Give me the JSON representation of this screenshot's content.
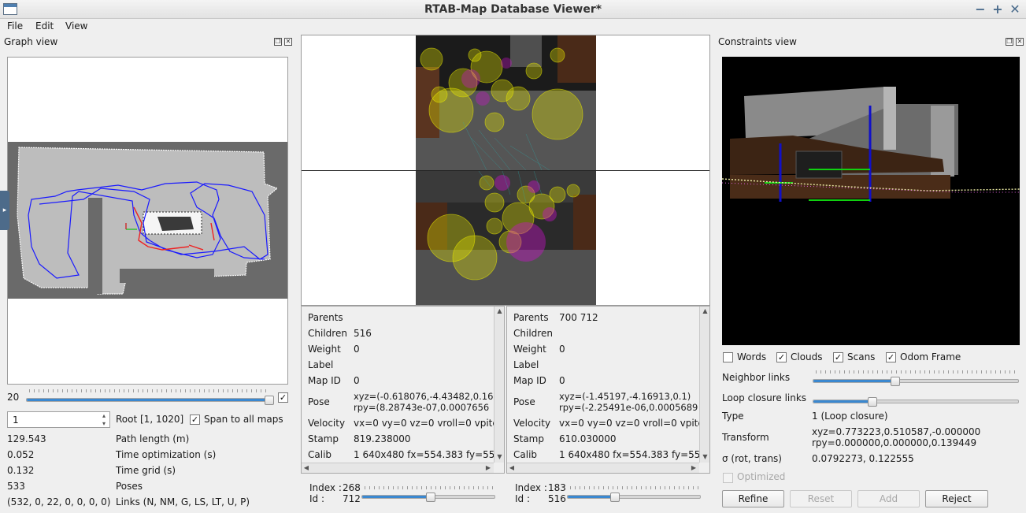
{
  "window": {
    "title": "RTAB-Map Database Viewer*",
    "buttons": [
      "−",
      "+",
      "✕"
    ]
  },
  "menu": [
    "File",
    "Edit",
    "View"
  ],
  "graph_view": {
    "title": "Graph view",
    "slider_value": "20",
    "slider_fraction": 0.99,
    "slider_checked": true,
    "root_input": "1",
    "root_label": "Root [1, 1020]",
    "span_checked": true,
    "span_label": "Span to all maps",
    "stats": [
      {
        "value": "129.543",
        "label": "Path length (m)"
      },
      {
        "value": "0.052",
        "label": "Time optimization (s)"
      },
      {
        "value": "0.132",
        "label": "Time grid (s)"
      },
      {
        "value": "533",
        "label": "Poses"
      },
      {
        "value": "(532, 0, 22, 0, 0, 0, 0)",
        "label": "Links (N, NM, G, LS, LT, U, P)"
      }
    ]
  },
  "left_node": {
    "fields": [
      {
        "label": "Parents",
        "value": ""
      },
      {
        "label": "Children",
        "value": "516"
      },
      {
        "label": "Weight",
        "value": "0"
      },
      {
        "label": "Label",
        "value": ""
      },
      {
        "label": "Map ID",
        "value": "0"
      },
      {
        "label": "Pose",
        "value": "xyz=(-0.618076,-4.43482,0.16",
        "value2": "rpy=(8.28743e-07,0.0007656"
      },
      {
        "label": "Velocity",
        "value": "vx=0 vy=0 vz=0 vroll=0 vpitc"
      },
      {
        "label": "Stamp",
        "value": "819.238000"
      },
      {
        "label": "Calib",
        "value": "1 640x480 fx=554.383 fy=55"
      }
    ],
    "index_label": "Index :",
    "index_value": "268",
    "id_label": "Id :",
    "id_value": "712",
    "slider_fraction": 0.52
  },
  "right_node": {
    "fields": [
      {
        "label": "Parents",
        "value": "700 712"
      },
      {
        "label": "Children",
        "value": ""
      },
      {
        "label": "Weight",
        "value": "0"
      },
      {
        "label": "Label",
        "value": ""
      },
      {
        "label": "Map ID",
        "value": "0"
      },
      {
        "label": "Pose",
        "value": "xyz=(-1.45197,-4.16913,0.1)",
        "value2": "rpy=(-2.25491e-06,0.0005689"
      },
      {
        "label": "Velocity",
        "value": "vx=0 vy=0 vz=0 vroll=0 vpitc"
      },
      {
        "label": "Stamp",
        "value": "610.030000"
      },
      {
        "label": "Calib",
        "value": "1 640x480 fx=554.383 fy=55"
      }
    ],
    "index_label": "Index :",
    "index_value": "183",
    "id_label": "Id :",
    "id_value": "516",
    "slider_fraction": 0.36
  },
  "constraints_view": {
    "title": "Constraints view",
    "checks": [
      {
        "label": "Words",
        "checked": false
      },
      {
        "label": "Clouds",
        "checked": true
      },
      {
        "label": "Scans",
        "checked": true
      },
      {
        "label": "Odom Frame",
        "checked": true
      }
    ],
    "neighbor_label": "Neighbor links",
    "neighbor_fraction": 0.4,
    "loop_label": "Loop closure links",
    "loop_fraction": 0.29,
    "type_label": "Type",
    "type_value": "1 (Loop closure)",
    "transform_label": "Transform",
    "transform_value1": "xyz=0.773223,0.510587,-0.000000",
    "transform_value2": "rpy=0.000000,0.000000,0.139449",
    "sigma_label": "σ (rot, trans)",
    "sigma_value": "0.0792273, 0.122555",
    "optimized_label": "Optimized",
    "buttons": {
      "refine": "Refine",
      "reset": "Reset",
      "add": "Add",
      "reject": "Reject"
    }
  },
  "icons": {
    "check": "✓",
    "up": "▲",
    "down": "▼",
    "left": "◀",
    "right": "▶",
    "float": "❐",
    "close": "✕",
    "spin_up": "▴",
    "spin_down": "▾",
    "side_arrow": "▸"
  }
}
